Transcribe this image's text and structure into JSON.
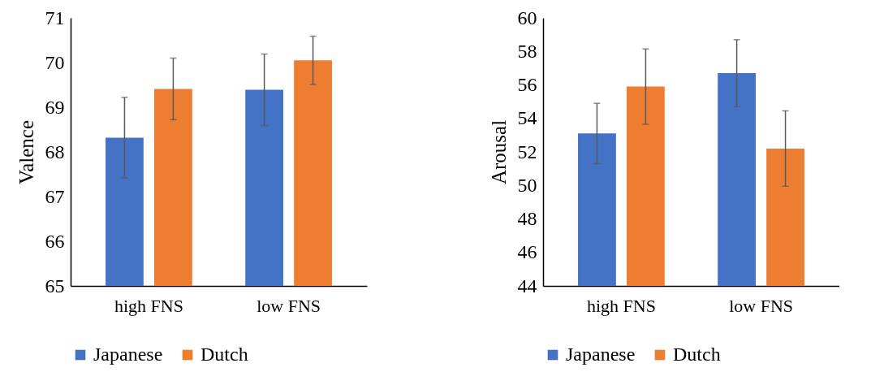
{
  "chart_data": [
    {
      "type": "bar",
      "ylabel": "Valence",
      "categories": [
        "high FNS",
        "low FNS"
      ],
      "ylim": [
        65,
        71
      ],
      "yticks": [
        65,
        66,
        67,
        68,
        69,
        70,
        71
      ],
      "grid": false,
      "legend": "bottom",
      "series": [
        {
          "name": "Japanese",
          "color": "#4472c4",
          "values": [
            68.32,
            69.39
          ],
          "errors": [
            0.9,
            0.8
          ]
        },
        {
          "name": "Dutch",
          "color": "#ed7d31",
          "values": [
            69.41,
            70.05
          ],
          "errors": [
            0.69,
            0.54
          ]
        }
      ]
    },
    {
      "type": "bar",
      "ylabel": "Arousal",
      "categories": [
        "high FNS",
        "low FNS"
      ],
      "ylim": [
        44,
        60
      ],
      "yticks": [
        44,
        46,
        48,
        50,
        52,
        54,
        56,
        58,
        60
      ],
      "grid": false,
      "legend": "bottom",
      "series": [
        {
          "name": "Japanese",
          "color": "#4472c4",
          "values": [
            53.1,
            56.7
          ],
          "errors": [
            1.8,
            2.0
          ]
        },
        {
          "name": "Dutch",
          "color": "#ed7d31",
          "values": [
            55.9,
            52.2
          ],
          "errors": [
            2.25,
            2.25
          ]
        }
      ]
    }
  ]
}
